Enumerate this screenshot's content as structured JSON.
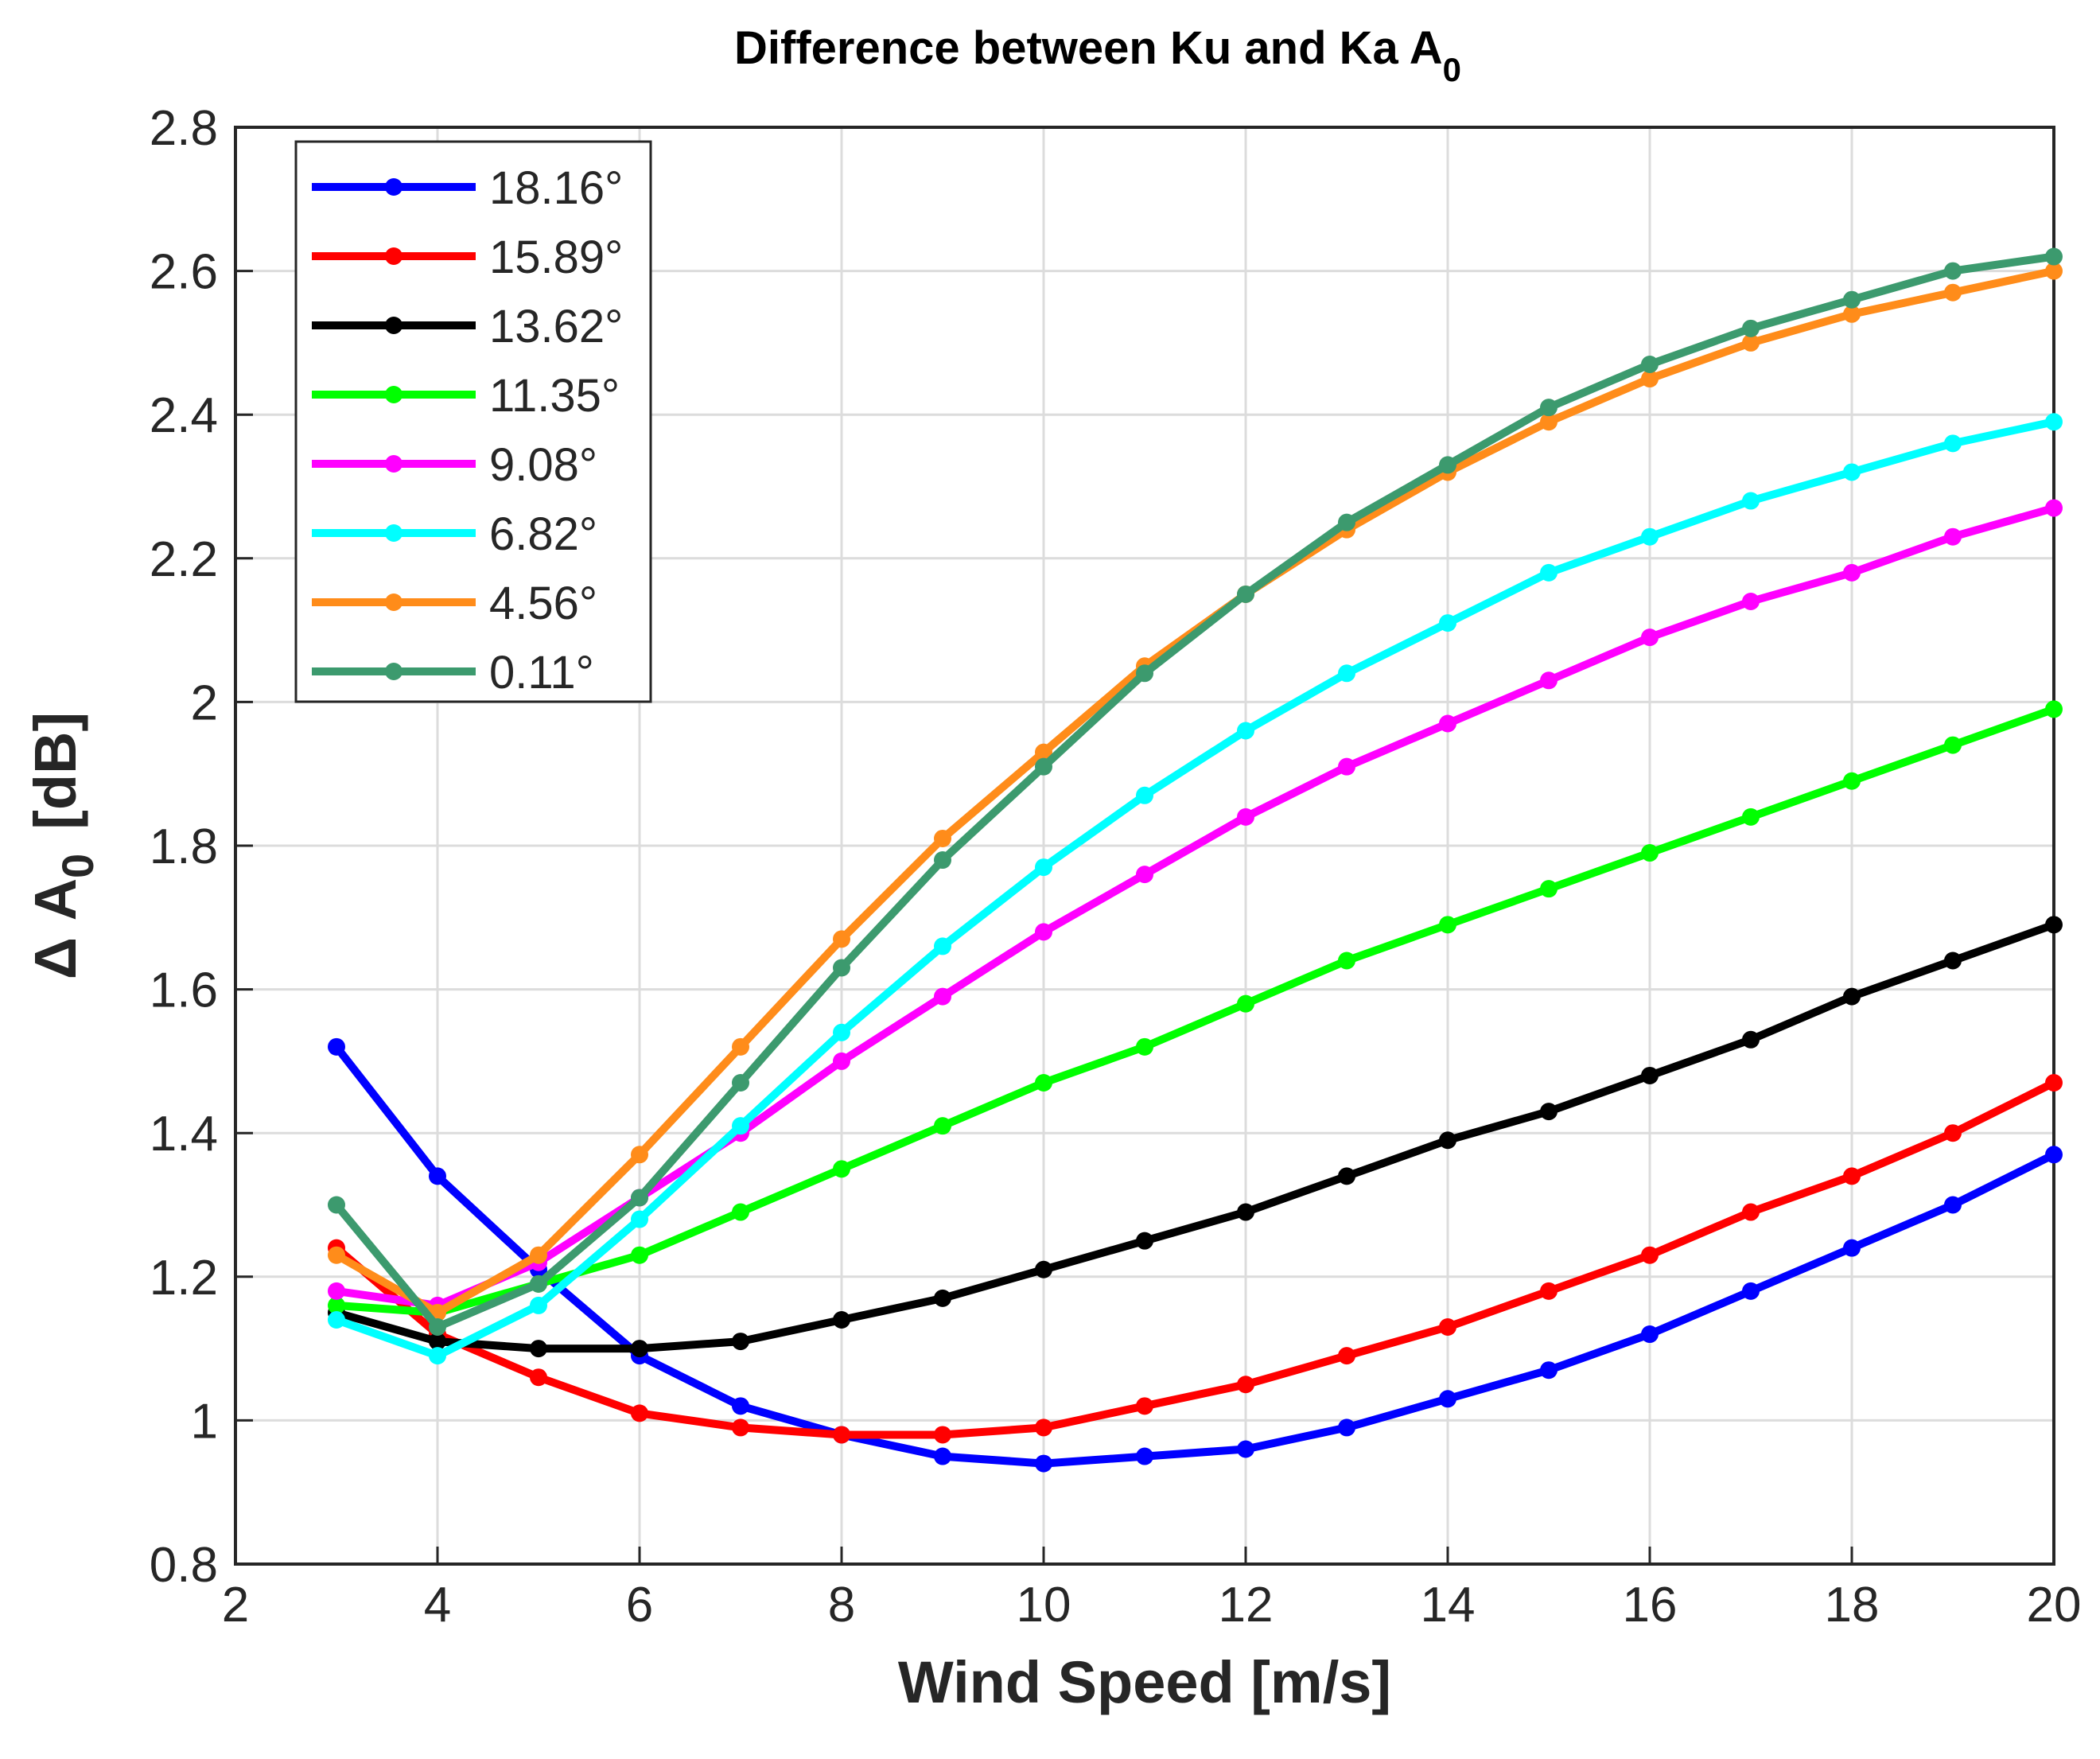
{
  "chart_data": {
    "type": "line",
    "title": "Difference between Ku and Ka A",
    "title_subscript": "0",
    "xlabel": "Wind Speed [m/s]",
    "ylabel_prefix": "Δ A",
    "ylabel_subscript": "0",
    "ylabel_suffix": "[dB]",
    "xlim": [
      2,
      20
    ],
    "ylim": [
      0.8,
      2.8
    ],
    "xticks": [
      2,
      4,
      6,
      8,
      10,
      12,
      14,
      16,
      18,
      20
    ],
    "yticks": [
      0.8,
      1,
      1.2,
      1.4,
      1.6,
      1.8,
      2,
      2.2,
      2.4,
      2.6,
      2.8
    ],
    "xtick_labels": [
      "2",
      "4",
      "6",
      "8",
      "10",
      "12",
      "14",
      "16",
      "18",
      "20"
    ],
    "ytick_labels": [
      "0.8",
      "1",
      "1.2",
      "1.4",
      "1.6",
      "1.8",
      "2",
      "2.2",
      "2.4",
      "2.6",
      "2.8"
    ],
    "grid": true,
    "legend_position": "top-left",
    "x": [
      3,
      4,
      5,
      6,
      7,
      8,
      9,
      10,
      11,
      12,
      13,
      14,
      15,
      16,
      17,
      18,
      19,
      20
    ],
    "series": [
      {
        "name": "18.16°",
        "color": "#0000ff",
        "values": [
          1.52,
          1.34,
          1.21,
          1.09,
          1.02,
          0.98,
          0.95,
          0.94,
          0.95,
          0.96,
          0.99,
          1.03,
          1.07,
          1.12,
          1.18,
          1.24,
          1.3,
          1.37
        ]
      },
      {
        "name": "15.89°",
        "color": "#ff0000",
        "values": [
          1.24,
          1.12,
          1.06,
          1.01,
          0.99,
          0.98,
          0.98,
          0.99,
          1.02,
          1.05,
          1.09,
          1.13,
          1.18,
          1.23,
          1.29,
          1.34,
          1.4,
          1.47
        ]
      },
      {
        "name": "13.62°",
        "color": "#000000",
        "values": [
          1.15,
          1.11,
          1.1,
          1.1,
          1.11,
          1.14,
          1.17,
          1.21,
          1.25,
          1.29,
          1.34,
          1.39,
          1.43,
          1.48,
          1.53,
          1.59,
          1.64,
          1.69
        ]
      },
      {
        "name": "11.35°",
        "color": "#00ff00",
        "values": [
          1.16,
          1.15,
          1.19,
          1.23,
          1.29,
          1.35,
          1.41,
          1.47,
          1.52,
          1.58,
          1.64,
          1.69,
          1.74,
          1.79,
          1.84,
          1.89,
          1.94,
          1.99
        ]
      },
      {
        "name": "9.08°",
        "color": "#ff00ff",
        "values": [
          1.18,
          1.16,
          1.22,
          1.31,
          1.4,
          1.5,
          1.59,
          1.68,
          1.76,
          1.84,
          1.91,
          1.97,
          2.03,
          2.09,
          2.14,
          2.18,
          2.23,
          2.27
        ]
      },
      {
        "name": "6.82°",
        "color": "#00ffff",
        "values": [
          1.14,
          1.09,
          1.16,
          1.28,
          1.41,
          1.54,
          1.66,
          1.77,
          1.87,
          1.96,
          2.04,
          2.11,
          2.18,
          2.23,
          2.28,
          2.32,
          2.36,
          2.39
        ]
      },
      {
        "name": "4.56°",
        "color": "#ff8c1a",
        "values": [
          1.23,
          1.15,
          1.23,
          1.37,
          1.52,
          1.67,
          1.81,
          1.93,
          2.05,
          2.15,
          2.24,
          2.32,
          2.39,
          2.45,
          2.5,
          2.54,
          2.57,
          2.6
        ]
      },
      {
        "name": "0.11°",
        "color": "#3c9a6e",
        "values": [
          1.3,
          1.13,
          1.19,
          1.31,
          1.47,
          1.63,
          1.78,
          1.91,
          2.04,
          2.15,
          2.25,
          2.33,
          2.41,
          2.47,
          2.52,
          2.56,
          2.6,
          2.62
        ]
      }
    ]
  }
}
